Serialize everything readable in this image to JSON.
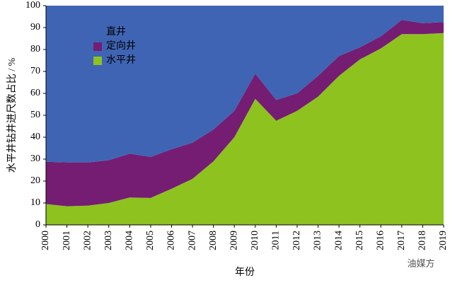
{
  "chart_data": {
    "type": "stacked-area",
    "categories": [
      "2000",
      "2001",
      "2002",
      "2003",
      "2004",
      "2005",
      "2006",
      "2007",
      "2008",
      "2009",
      "2010",
      "2011",
      "2012",
      "2013",
      "2014",
      "2015",
      "2016",
      "2017",
      "2018",
      "2019"
    ],
    "series": [
      {
        "name": "水平井",
        "color": "#8dc21f",
        "values": [
          9.5,
          8.5,
          8.8,
          10,
          12.5,
          12.3,
          16.5,
          21,
          29,
          40,
          57.5,
          47.5,
          52,
          58.5,
          68,
          75.5,
          80.5,
          87,
          87,
          87.5
        ]
      },
      {
        "name": "定向井",
        "color": "#741d73",
        "values": [
          19.3,
          20,
          19.7,
          19.5,
          20,
          18.7,
          18,
          16.5,
          14.5,
          12,
          11.5,
          9.5,
          8,
          9.5,
          9,
          5.5,
          5.5,
          6.5,
          5,
          5
        ]
      },
      {
        "name": "直井",
        "color": "#3f64b4",
        "values": [
          71.2,
          71.5,
          71.5,
          70.5,
          67.5,
          69,
          65.5,
          62.5,
          56.5,
          48,
          31,
          43,
          40,
          32,
          23,
          19,
          14,
          6.5,
          8,
          7.5
        ]
      }
    ],
    "ylim": [
      0,
      100
    ],
    "yticks": [
      0,
      10,
      20,
      30,
      40,
      50,
      60,
      70,
      80,
      90,
      100
    ],
    "x_label": "年份",
    "y_label": "水平井钻井进尺数占比 / %",
    "legend": "upper-left",
    "watermark": "油媒方"
  }
}
